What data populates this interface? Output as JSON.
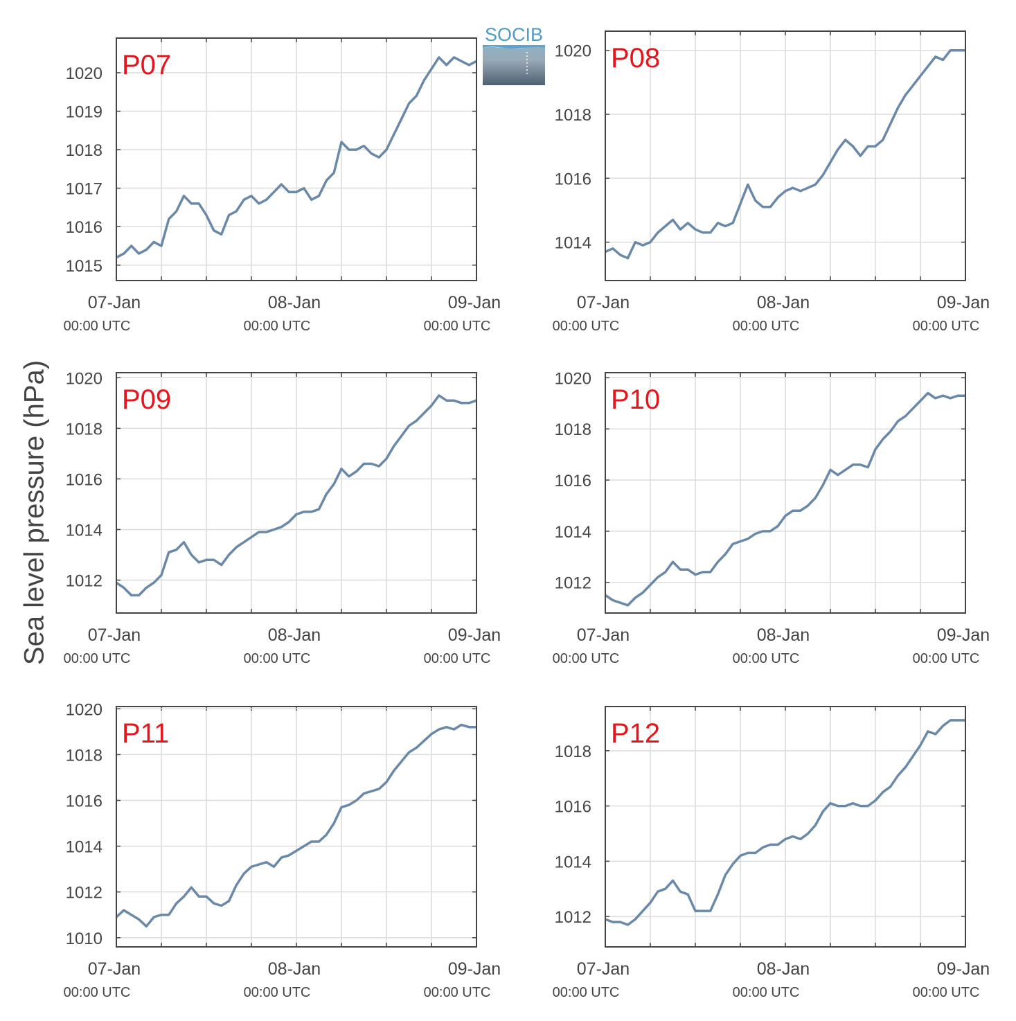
{
  "y_axis_label": "Sea level pressure (hPa)",
  "logo_text": "SOCIB",
  "colors": {
    "line": "#6a89a8",
    "panel_label": "#e8141c",
    "grid": "#dcdcdc",
    "axis": "#444444"
  },
  "chart_data": [
    {
      "type": "line",
      "title": "P07",
      "xlabel": "",
      "ylabel": "Sea level pressure (hPa)",
      "x_ticks": [
        {
          "date": "07-Jan",
          "time": "00:00 UTC"
        },
        {
          "date": "08-Jan",
          "time": "00:00 UTC"
        },
        {
          "date": "09-Jan",
          "time": "00:00 UTC"
        }
      ],
      "y_ticks": [
        1015,
        1016,
        1017,
        1018,
        1019,
        1020
      ],
      "xlim": [
        0,
        48
      ],
      "ylim": [
        1014.6,
        1020.9
      ],
      "series": [
        {
          "x": [
            0,
            1,
            2,
            3,
            4,
            5,
            6,
            7,
            8,
            9,
            10,
            11,
            12,
            13,
            14,
            15,
            16,
            17,
            18,
            19,
            20,
            21,
            22,
            23,
            24,
            25,
            26,
            27,
            28,
            29,
            30,
            31,
            32,
            33,
            34,
            35,
            36,
            37,
            38,
            39,
            40,
            41,
            42,
            43,
            44,
            45,
            46,
            47,
            48
          ],
          "y": [
            1015.2,
            1015.3,
            1015.5,
            1015.3,
            1015.4,
            1015.6,
            1015.5,
            1016.2,
            1016.4,
            1016.8,
            1016.6,
            1016.6,
            1016.3,
            1015.9,
            1015.8,
            1016.3,
            1016.4,
            1016.7,
            1016.8,
            1016.6,
            1016.7,
            1016.9,
            1017.1,
            1016.9,
            1016.9,
            1017.0,
            1016.7,
            1016.8,
            1017.2,
            1017.4,
            1018.2,
            1018.0,
            1018.0,
            1018.1,
            1017.9,
            1017.8,
            1018.0,
            1018.4,
            1018.8,
            1019.2,
            1019.4,
            1019.8,
            1020.1,
            1020.4,
            1020.2,
            1020.4,
            1020.3,
            1020.2,
            1020.3
          ]
        }
      ]
    },
    {
      "type": "line",
      "title": "P08",
      "xlabel": "",
      "ylabel": "Sea level pressure (hPa)",
      "x_ticks": [
        {
          "date": "07-Jan",
          "time": "00:00 UTC"
        },
        {
          "date": "08-Jan",
          "time": "00:00 UTC"
        },
        {
          "date": "09-Jan",
          "time": "00:00 UTC"
        }
      ],
      "y_ticks": [
        1014,
        1016,
        1018,
        1020
      ],
      "xlim": [
        0,
        48
      ],
      "ylim": [
        1012.8,
        1020.6
      ],
      "series": [
        {
          "x": [
            0,
            1,
            2,
            3,
            4,
            5,
            6,
            7,
            8,
            9,
            10,
            11,
            12,
            13,
            14,
            15,
            16,
            17,
            18,
            19,
            20,
            21,
            22,
            23,
            24,
            25,
            26,
            27,
            28,
            29,
            30,
            31,
            32,
            33,
            34,
            35,
            36,
            37,
            38,
            39,
            40,
            41,
            42,
            43,
            44,
            45,
            46,
            47,
            48
          ],
          "y": [
            1013.7,
            1013.8,
            1013.6,
            1013.5,
            1014.0,
            1013.9,
            1014.0,
            1014.3,
            1014.5,
            1014.7,
            1014.4,
            1014.6,
            1014.4,
            1014.3,
            1014.3,
            1014.6,
            1014.5,
            1014.6,
            1015.2,
            1015.8,
            1015.3,
            1015.1,
            1015.1,
            1015.4,
            1015.6,
            1015.7,
            1015.6,
            1015.7,
            1015.8,
            1016.1,
            1016.5,
            1016.9,
            1017.2,
            1017.0,
            1016.7,
            1017.0,
            1017.0,
            1017.2,
            1017.7,
            1018.2,
            1018.6,
            1018.9,
            1019.2,
            1019.5,
            1019.8,
            1019.7,
            1020.0,
            1020.0,
            1020.0
          ]
        }
      ]
    },
    {
      "type": "line",
      "title": "P09",
      "xlabel": "",
      "ylabel": "Sea level pressure (hPa)",
      "x_ticks": [
        {
          "date": "07-Jan",
          "time": "00:00 UTC"
        },
        {
          "date": "08-Jan",
          "time": "00:00 UTC"
        },
        {
          "date": "09-Jan",
          "time": "00:00 UTC"
        }
      ],
      "y_ticks": [
        1012,
        1014,
        1016,
        1018,
        1020
      ],
      "xlim": [
        0,
        48
      ],
      "ylim": [
        1010.7,
        1020.2
      ],
      "series": [
        {
          "x": [
            0,
            1,
            2,
            3,
            4,
            5,
            6,
            7,
            8,
            9,
            10,
            11,
            12,
            13,
            14,
            15,
            16,
            17,
            18,
            19,
            20,
            21,
            22,
            23,
            24,
            25,
            26,
            27,
            28,
            29,
            30,
            31,
            32,
            33,
            34,
            35,
            36,
            37,
            38,
            39,
            40,
            41,
            42,
            43,
            44,
            45,
            46,
            47,
            48
          ],
          "y": [
            1011.9,
            1011.7,
            1011.4,
            1011.4,
            1011.7,
            1011.9,
            1012.2,
            1013.1,
            1013.2,
            1013.5,
            1013.0,
            1012.7,
            1012.8,
            1012.8,
            1012.6,
            1013.0,
            1013.3,
            1013.5,
            1013.7,
            1013.9,
            1013.9,
            1014.0,
            1014.1,
            1014.3,
            1014.6,
            1014.7,
            1014.7,
            1014.8,
            1015.4,
            1015.8,
            1016.4,
            1016.1,
            1016.3,
            1016.6,
            1016.6,
            1016.5,
            1016.8,
            1017.3,
            1017.7,
            1018.1,
            1018.3,
            1018.6,
            1018.9,
            1019.3,
            1019.1,
            1019.1,
            1019.0,
            1019.0,
            1019.1
          ]
        }
      ]
    },
    {
      "type": "line",
      "title": "P10",
      "xlabel": "",
      "ylabel": "Sea level pressure (hPa)",
      "x_ticks": [
        {
          "date": "07-Jan",
          "time": "00:00 UTC"
        },
        {
          "date": "08-Jan",
          "time": "00:00 UTC"
        },
        {
          "date": "09-Jan",
          "time": "00:00 UTC"
        }
      ],
      "y_ticks": [
        1012,
        1014,
        1016,
        1018,
        1020
      ],
      "xlim": [
        0,
        48
      ],
      "ylim": [
        1010.8,
        1020.2
      ],
      "series": [
        {
          "x": [
            0,
            1,
            2,
            3,
            4,
            5,
            6,
            7,
            8,
            9,
            10,
            11,
            12,
            13,
            14,
            15,
            16,
            17,
            18,
            19,
            20,
            21,
            22,
            23,
            24,
            25,
            26,
            27,
            28,
            29,
            30,
            31,
            32,
            33,
            34,
            35,
            36,
            37,
            38,
            39,
            40,
            41,
            42,
            43,
            44,
            45,
            46,
            47,
            48
          ],
          "y": [
            1011.5,
            1011.3,
            1011.2,
            1011.1,
            1011.4,
            1011.6,
            1011.9,
            1012.2,
            1012.4,
            1012.8,
            1012.5,
            1012.5,
            1012.3,
            1012.4,
            1012.4,
            1012.8,
            1013.1,
            1013.5,
            1013.6,
            1013.7,
            1013.9,
            1014.0,
            1014.0,
            1014.2,
            1014.6,
            1014.8,
            1014.8,
            1015.0,
            1015.3,
            1015.8,
            1016.4,
            1016.2,
            1016.4,
            1016.6,
            1016.6,
            1016.5,
            1017.2,
            1017.6,
            1017.9,
            1018.3,
            1018.5,
            1018.8,
            1019.1,
            1019.4,
            1019.2,
            1019.3,
            1019.2,
            1019.3,
            1019.3
          ]
        }
      ]
    },
    {
      "type": "line",
      "title": "P11",
      "xlabel": "",
      "ylabel": "Sea level pressure (hPa)",
      "x_ticks": [
        {
          "date": "07-Jan",
          "time": "00:00 UTC"
        },
        {
          "date": "08-Jan",
          "time": "00:00 UTC"
        },
        {
          "date": "09-Jan",
          "time": "00:00 UTC"
        }
      ],
      "y_ticks": [
        1010,
        1012,
        1014,
        1016,
        1018,
        1020
      ],
      "xlim": [
        0,
        48
      ],
      "ylim": [
        1009.6,
        1020.1
      ],
      "series": [
        {
          "x": [
            0,
            1,
            2,
            3,
            4,
            5,
            6,
            7,
            8,
            9,
            10,
            11,
            12,
            13,
            14,
            15,
            16,
            17,
            18,
            19,
            20,
            21,
            22,
            23,
            24,
            25,
            26,
            27,
            28,
            29,
            30,
            31,
            32,
            33,
            34,
            35,
            36,
            37,
            38,
            39,
            40,
            41,
            42,
            43,
            44,
            45,
            46,
            47,
            48
          ],
          "y": [
            1010.9,
            1011.2,
            1011.0,
            1010.8,
            1010.5,
            1010.9,
            1011.0,
            1011.0,
            1011.5,
            1011.8,
            1012.2,
            1011.8,
            1011.8,
            1011.5,
            1011.4,
            1011.6,
            1012.3,
            1012.8,
            1013.1,
            1013.2,
            1013.3,
            1013.1,
            1013.5,
            1013.6,
            1013.8,
            1014.0,
            1014.2,
            1014.2,
            1014.5,
            1015.0,
            1015.7,
            1015.8,
            1016.0,
            1016.3,
            1016.4,
            1016.5,
            1016.8,
            1017.3,
            1017.7,
            1018.1,
            1018.3,
            1018.6,
            1018.9,
            1019.1,
            1019.2,
            1019.1,
            1019.3,
            1019.2,
            1019.2
          ]
        }
      ]
    },
    {
      "type": "line",
      "title": "P12",
      "xlabel": "",
      "ylabel": "Sea level pressure (hPa)",
      "x_ticks": [
        {
          "date": "07-Jan",
          "time": "00:00 UTC"
        },
        {
          "date": "08-Jan",
          "time": "00:00 UTC"
        },
        {
          "date": "09-Jan",
          "time": "00:00 UTC"
        }
      ],
      "y_ticks": [
        1012,
        1014,
        1016,
        1018
      ],
      "xlim": [
        0,
        48
      ],
      "ylim": [
        1010.9,
        1019.6
      ],
      "series": [
        {
          "x": [
            0,
            1,
            2,
            3,
            4,
            5,
            6,
            7,
            8,
            9,
            10,
            11,
            12,
            13,
            14,
            15,
            16,
            17,
            18,
            19,
            20,
            21,
            22,
            23,
            24,
            25,
            26,
            27,
            28,
            29,
            30,
            31,
            32,
            33,
            34,
            35,
            36,
            37,
            38,
            39,
            40,
            41,
            42,
            43,
            44,
            45,
            46,
            47,
            48
          ],
          "y": [
            1011.9,
            1011.8,
            1011.8,
            1011.7,
            1011.9,
            1012.2,
            1012.5,
            1012.9,
            1013.0,
            1013.3,
            1012.9,
            1012.8,
            1012.2,
            1012.2,
            1012.2,
            1012.8,
            1013.5,
            1013.9,
            1014.2,
            1014.3,
            1014.3,
            1014.5,
            1014.6,
            1014.6,
            1014.8,
            1014.9,
            1014.8,
            1015.0,
            1015.3,
            1015.8,
            1016.1,
            1016.0,
            1016.0,
            1016.1,
            1016.0,
            1016.0,
            1016.2,
            1016.5,
            1016.7,
            1017.1,
            1017.4,
            1017.8,
            1018.2,
            1018.7,
            1018.6,
            1018.9,
            1019.1,
            1019.1,
            1019.1
          ]
        }
      ]
    }
  ]
}
